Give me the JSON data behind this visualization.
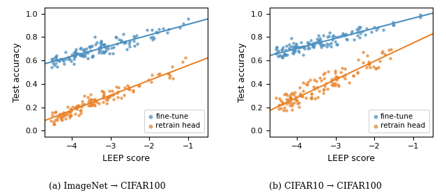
{
  "plot_a": {
    "title": "(a) ImageNet → CIFAR100",
    "finetune_line": {
      "x0": -4.55,
      "x1": -0.55,
      "y0": 0.585,
      "y1": 0.95
    },
    "retrain_line": {
      "x0": -4.55,
      "x1": -0.55,
      "y0": 0.105,
      "y1": 0.615
    }
  },
  "plot_b": {
    "title": "(b) CIFAR10 → CIFAR100",
    "finetune_line": {
      "x0": -4.55,
      "x1": -0.55,
      "y0": 0.655,
      "y1": 1.0
    },
    "retrain_line": {
      "x0": -4.55,
      "x1": -0.55,
      "y0": 0.195,
      "y1": 0.82
    }
  },
  "color_finetune": "#4C8FC0",
  "color_retrain": "#E8832A",
  "xlim": [
    -4.7,
    -0.5
  ],
  "ylim": [
    -0.05,
    1.05
  ],
  "xticks": [
    -4,
    -3,
    -2,
    -1
  ],
  "yticks": [
    0.0,
    0.2,
    0.4,
    0.6,
    0.8,
    1.0
  ],
  "xlabel": "LEEP score",
  "ylabel": "Test accuracy",
  "legend_labels": [
    "fine-tune",
    "retrain head"
  ]
}
